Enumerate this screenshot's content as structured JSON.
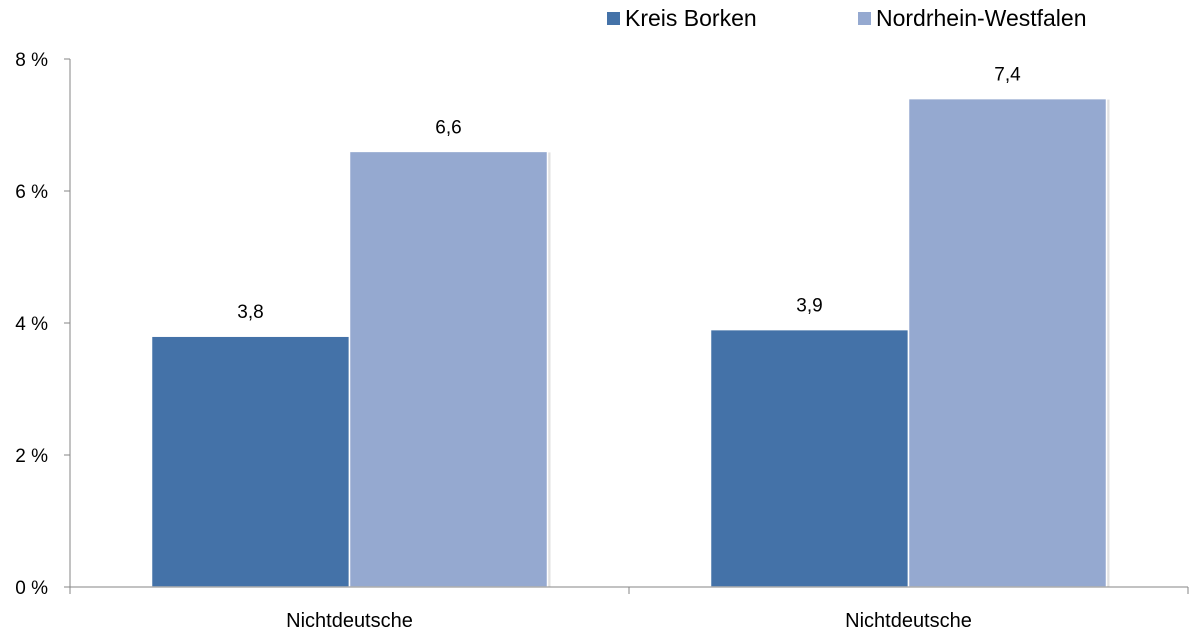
{
  "chart_data": {
    "type": "bar",
    "categories": [
      "Nichtdeutsche",
      "Nichtdeutsche"
    ],
    "series": [
      {
        "name": "Kreis Borken",
        "values": [
          3.8,
          3.9
        ],
        "labels": [
          "3,8",
          "3,9"
        ],
        "color": "#4472a8"
      },
      {
        "name": "Nordrhein-Westfalen",
        "values": [
          6.6,
          7.4
        ],
        "labels": [
          "6,6",
          "7,4"
        ],
        "color": "#95a9d0"
      }
    ],
    "ylim": [
      0,
      8
    ],
    "yticks": [
      0,
      2,
      4,
      6,
      8
    ],
    "ytick_labels": [
      "0 %",
      "2 %",
      "4 %",
      "6 %",
      "8 %"
    ],
    "legend_position": "top-right",
    "grid": false
  }
}
